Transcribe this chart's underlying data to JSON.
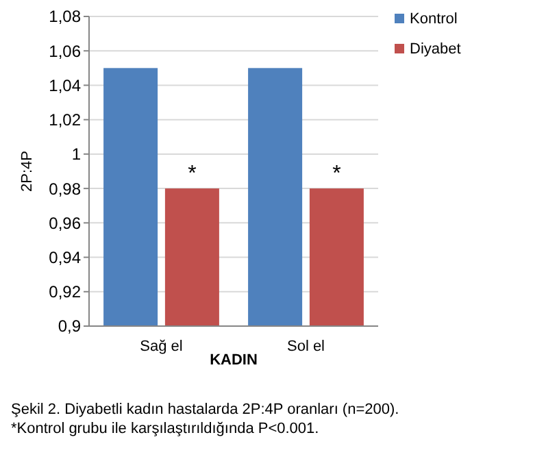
{
  "chart_data": {
    "type": "bar",
    "categories": [
      "Sağ el",
      "Sol el"
    ],
    "series": [
      {
        "name": "Kontrol",
        "color": "#4f81bd",
        "values": [
          1.05,
          1.05
        ]
      },
      {
        "name": "Diyabet",
        "color": "#c0504d",
        "values": [
          0.98,
          0.98
        ]
      }
    ],
    "xlabel": "KADIN",
    "ylabel": "2P:4P",
    "ylim": [
      0.9,
      1.08
    ],
    "yticks": [
      {
        "value": 0.9,
        "label": "0,9"
      },
      {
        "value": 0.92,
        "label": "0,92"
      },
      {
        "value": 0.94,
        "label": "0,94"
      },
      {
        "value": 0.96,
        "label": "0,96"
      },
      {
        "value": 0.98,
        "label": "0,98"
      },
      1,
      {
        "value": 1.02,
        "label": "1,02"
      },
      {
        "value": 1.04,
        "label": "1,04"
      },
      {
        "value": 1.06,
        "label": "1,06"
      },
      {
        "value": 1.08,
        "label": "1,08"
      }
    ],
    "grid": "y",
    "legend": "top right",
    "annotations": [
      {
        "text": "*",
        "x": "Sağ el",
        "y": 0.98
      },
      {
        "text": "*",
        "x": "Sol el",
        "y": 0.98
      },
      "Şekil 2. Diyabetli kadın hastalarda 2P:4P oranları (n=200). *Kontrol grubu ile karşılaştırıldığında P<0.001."
    ]
  }
}
